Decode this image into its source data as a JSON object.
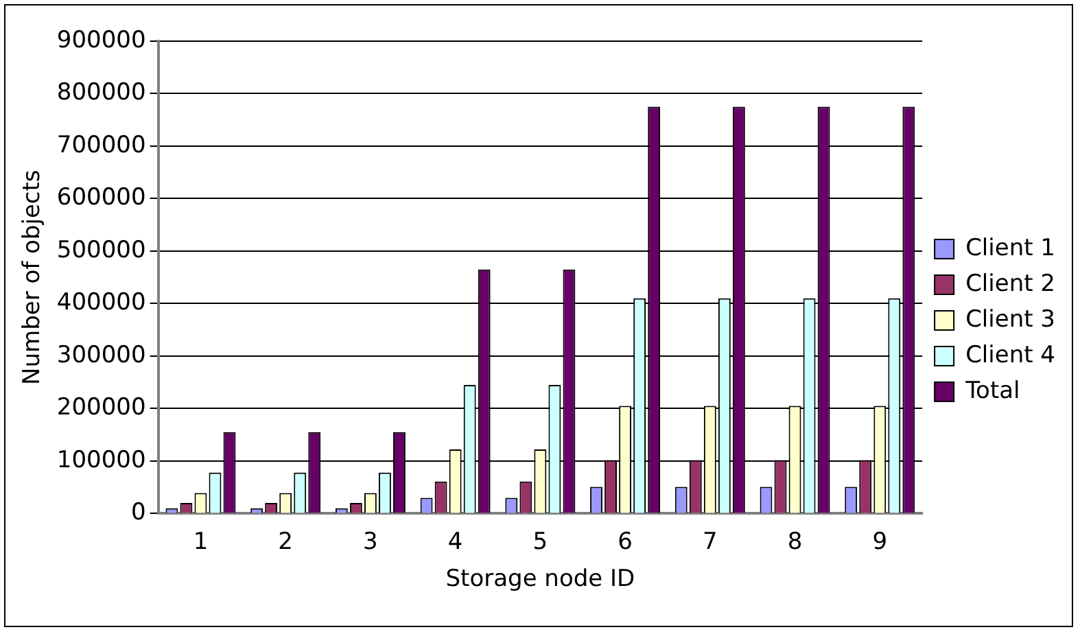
{
  "chart_data": {
    "type": "bar",
    "xlabel": "Storage node ID",
    "ylabel": "Number of objects",
    "categories": [
      "1",
      "2",
      "3",
      "4",
      "5",
      "6",
      "7",
      "8",
      "9"
    ],
    "series": [
      {
        "name": "Client 1",
        "color": "#9999ff",
        "values": [
          10000,
          10000,
          10000,
          30000,
          30000,
          51000,
          51000,
          51000,
          51000
        ]
      },
      {
        "name": "Client 2",
        "color": "#993366",
        "values": [
          20000,
          20000,
          20000,
          61000,
          61000,
          102000,
          102000,
          102000,
          102000
        ]
      },
      {
        "name": "Client 3",
        "color": "#ffffcc",
        "values": [
          39000,
          39000,
          39000,
          122000,
          122000,
          205000,
          205000,
          205000,
          205000
        ]
      },
      {
        "name": "Client 4",
        "color": "#ccffff",
        "values": [
          78000,
          78000,
          78000,
          245000,
          245000,
          410000,
          410000,
          410000,
          410000
        ]
      },
      {
        "name": "Total",
        "color": "#660066",
        "values": [
          155000,
          155000,
          155000,
          465000,
          465000,
          775000,
          775000,
          775000,
          775000
        ]
      }
    ],
    "ylim": [
      0,
      900000
    ],
    "yticks": [
      0,
      100000,
      200000,
      300000,
      400000,
      500000,
      600000,
      700000,
      800000,
      900000
    ],
    "grid": "y",
    "legend": "right"
  }
}
